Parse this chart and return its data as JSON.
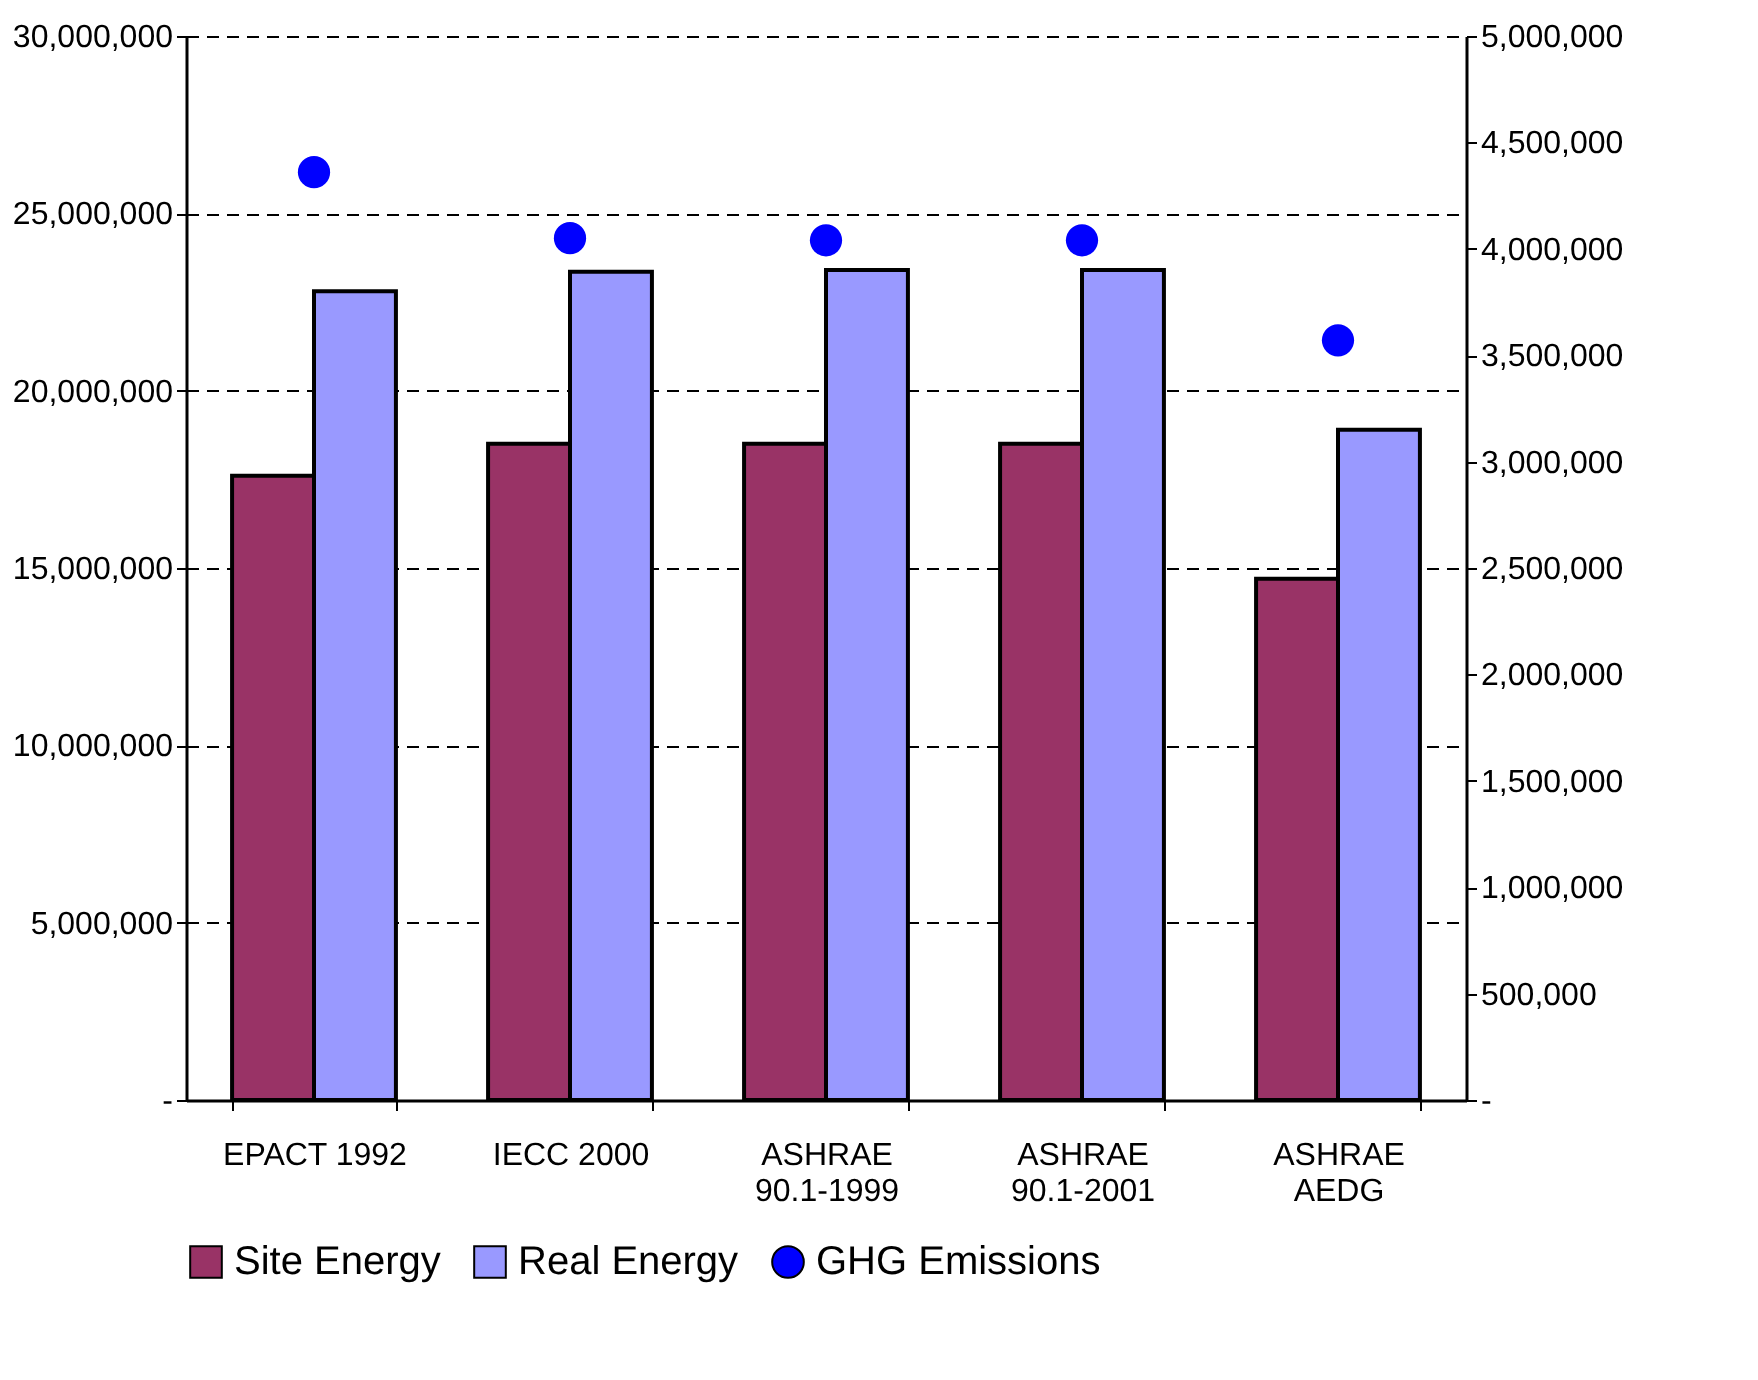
{
  "chart_data": {
    "type": "bar",
    "categories": [
      "EPACT 1992",
      "IECC 2000",
      "ASHRAE\n90.1-1999",
      "ASHRAE\n90.1-2001",
      "ASHRAE\nAEDG"
    ],
    "series": [
      {
        "name": "Site Energy",
        "color": "#993366",
        "values": [
          17600000,
          18500000,
          18500000,
          18500000,
          14700000
        ]
      },
      {
        "name": "Real Energy",
        "color": "#9999ff",
        "values": [
          22800000,
          23350000,
          23400000,
          23400000,
          18900000
        ]
      },
      {
        "name": "GHG Emissions",
        "type": "scatter",
        "axis": "y2",
        "color": "#0000ff",
        "values": [
          4360000,
          4050000,
          4040000,
          4040000,
          3570000
        ]
      }
    ],
    "ylim": [
      0,
      30000000
    ],
    "yticks": [
      {
        "value": 0,
        "label": "-"
      },
      {
        "value": 5000000,
        "label": "5,000,000"
      },
      {
        "value": 10000000,
        "label": "10,000,000"
      },
      {
        "value": 15000000,
        "label": "15,000,000"
      },
      {
        "value": 20000000,
        "label": "20,000,000"
      },
      {
        "value": 25000000,
        "label": "25,000,000"
      },
      {
        "value": 30000000,
        "label": "30,000,000"
      }
    ],
    "y2lim": [
      0,
      5000000
    ],
    "y2ticks": [
      {
        "value": 0,
        "label": "-"
      },
      {
        "value": 500000,
        "label": "500,000"
      },
      {
        "value": 1000000,
        "label": "1,000,000"
      },
      {
        "value": 1500000,
        "label": "1,500,000"
      },
      {
        "value": 2000000,
        "label": "2,000,000"
      },
      {
        "value": 2500000,
        "label": "2,500,000"
      },
      {
        "value": 3000000,
        "label": "3,000,000"
      },
      {
        "value": 3500000,
        "label": "3,500,000"
      },
      {
        "value": 4000000,
        "label": "4,000,000"
      },
      {
        "value": 4500000,
        "label": "4,500,000"
      },
      {
        "value": 5000000,
        "label": "5,000,000"
      }
    ],
    "grid": "y",
    "legend": "bottom"
  }
}
